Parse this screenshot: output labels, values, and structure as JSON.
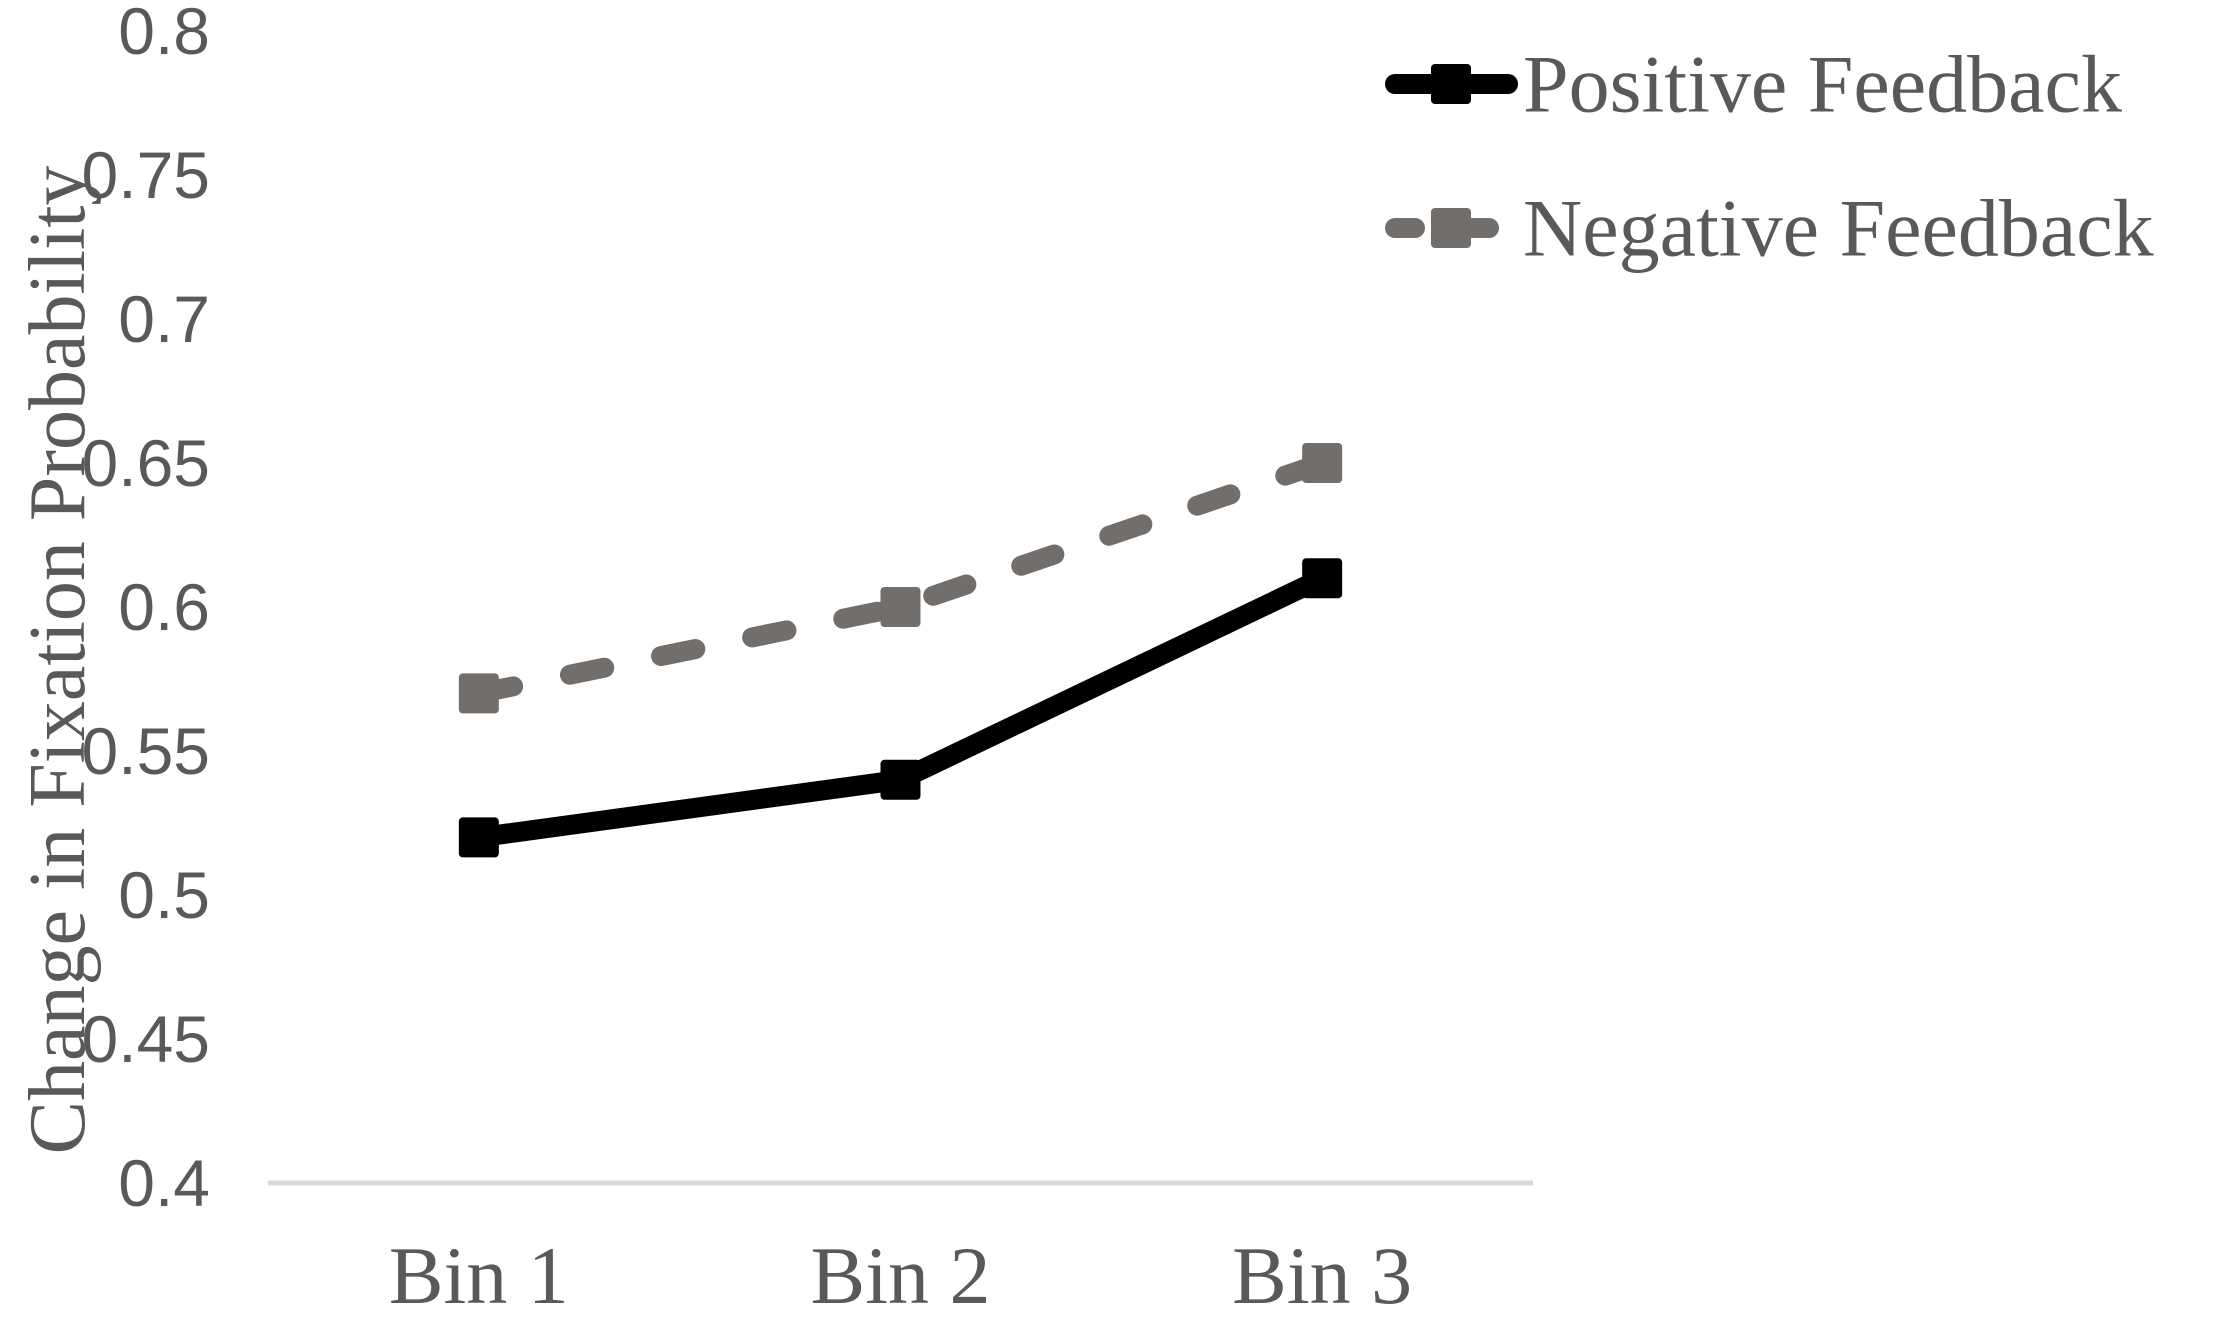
{
  "chart_data": {
    "type": "line",
    "title": "",
    "xlabel": "",
    "ylabel": "Change in Fixation Probability",
    "categories": [
      "Bin 1",
      "Bin 2",
      "Bin 3"
    ],
    "series": [
      {
        "name": "Positive Feedback",
        "values": [
          0.52,
          0.54,
          0.61
        ],
        "color": "#000000",
        "line_style": "solid",
        "marker": "square"
      },
      {
        "name": "Negative Feedback",
        "values": [
          0.57,
          0.6,
          0.65
        ],
        "color": "#716e6c",
        "line_style": "dashed",
        "marker": "square"
      }
    ],
    "ylim": [
      0.4,
      0.8
    ],
    "ytick_step": 0.05,
    "ytick_labels": [
      "0.4",
      "0.45",
      "0.5",
      "0.55",
      "0.6",
      "0.65",
      "0.7",
      "0.75",
      "0.8"
    ],
    "grid": false,
    "legend_position": "top-right",
    "colors": {
      "text": "#595959",
      "axis_line": "#d9d9d9",
      "background": "#ffffff"
    }
  }
}
